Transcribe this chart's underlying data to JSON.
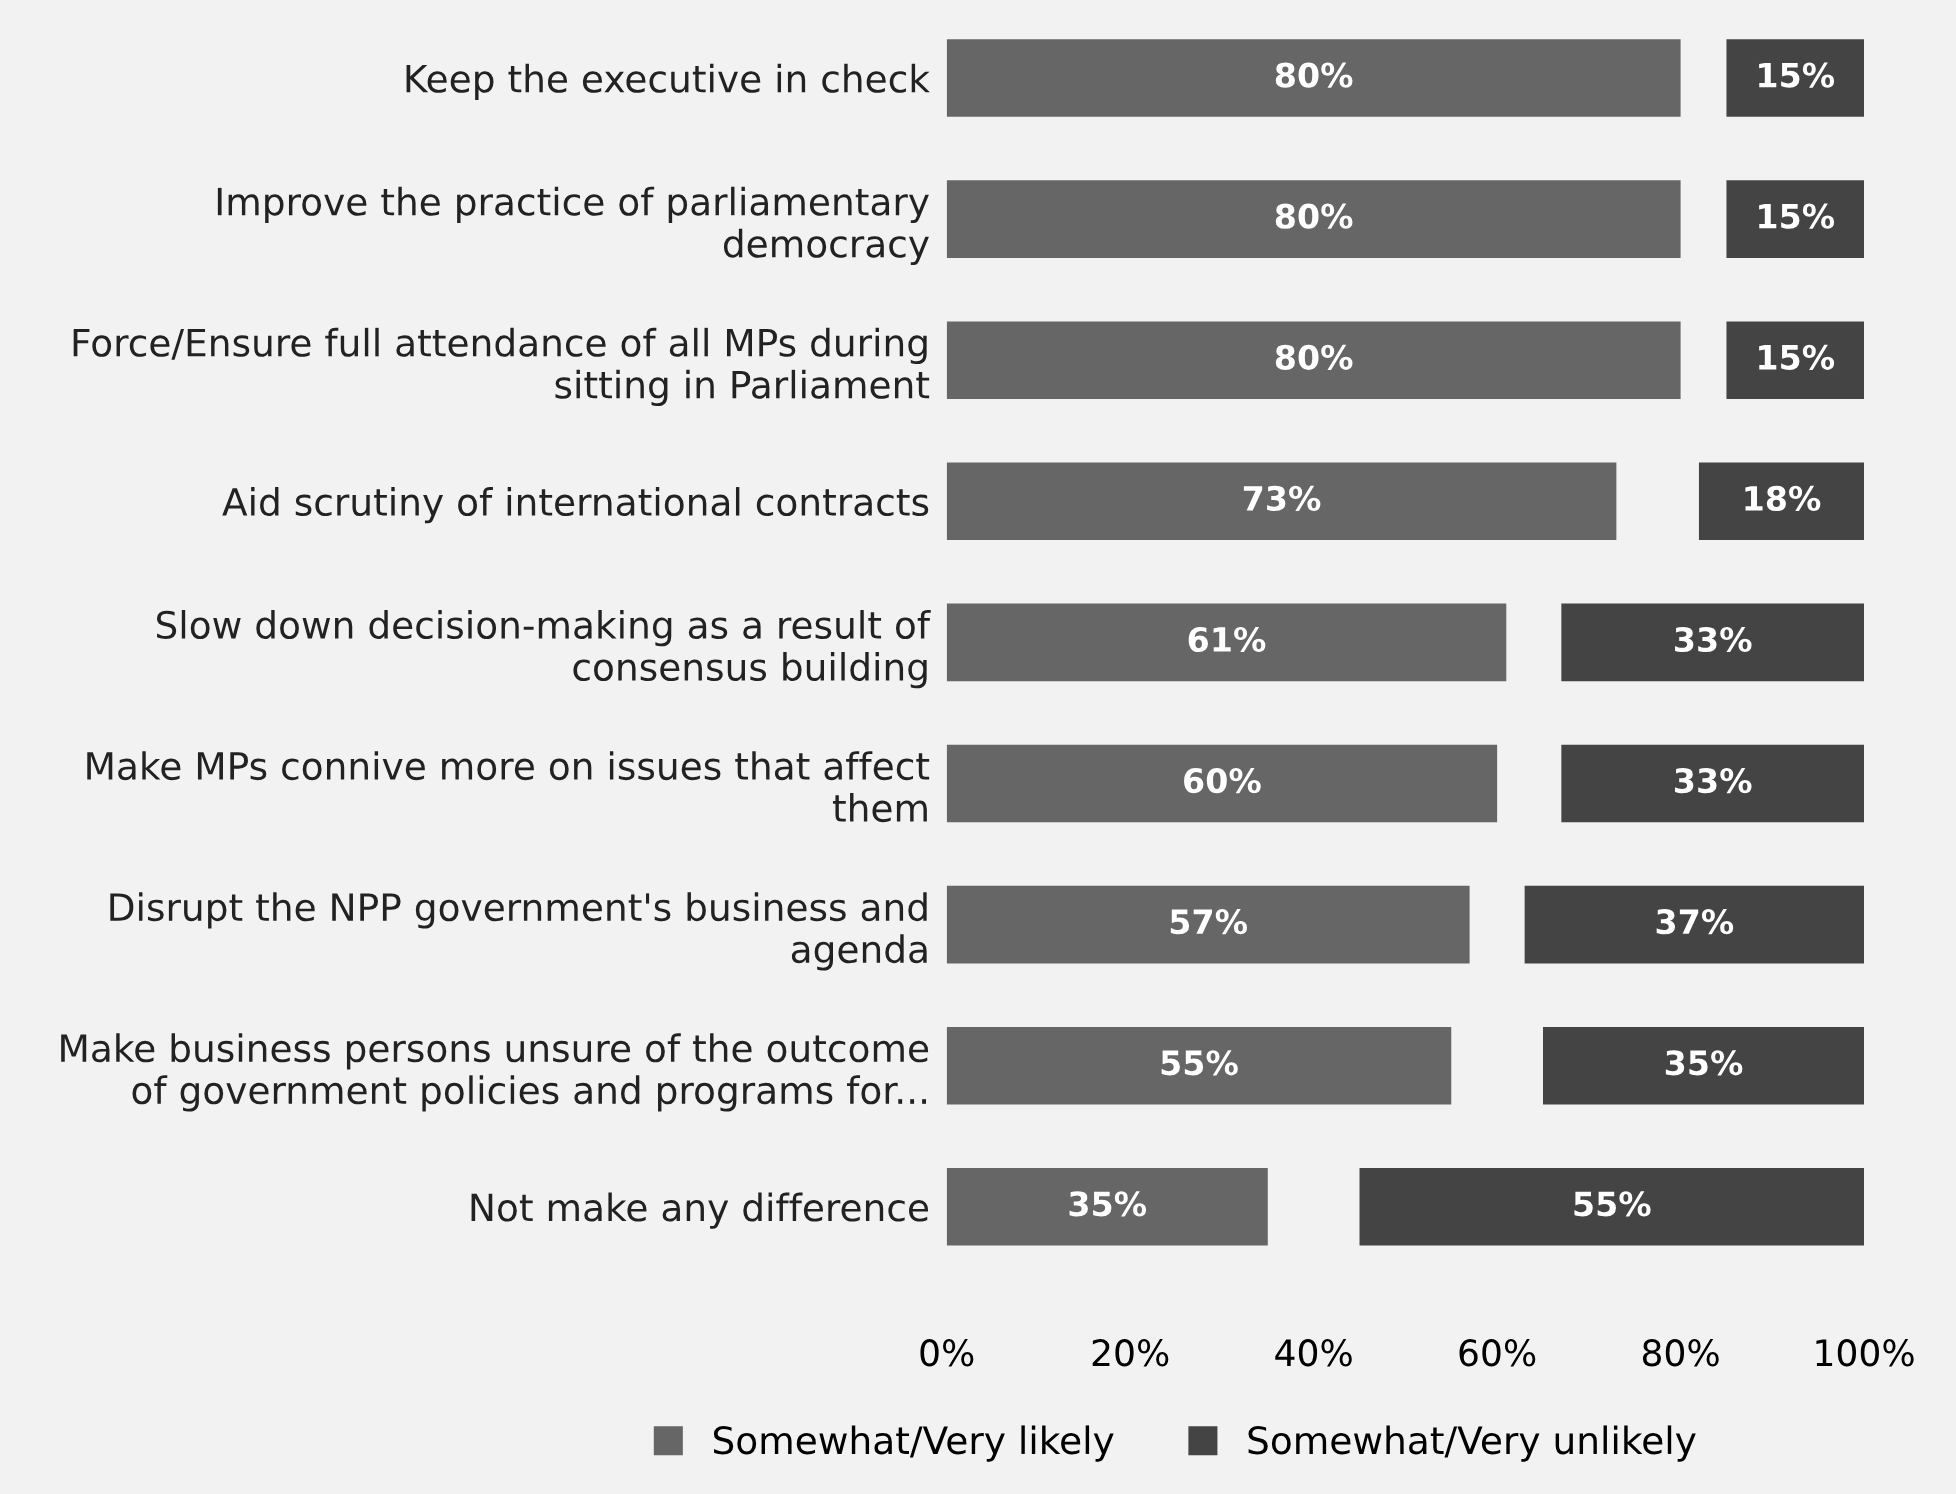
{
  "chart_data": {
    "type": "bar",
    "orientation": "horizontal",
    "categories": [
      "Keep the executive in check",
      "Improve the practice of parliamentary\ndemocracy",
      "Force/Ensure full attendance of all MPs during\nsitting in Parliament",
      "Aid scrutiny of international contracts",
      "Slow down decision-making as a result of\nconsensus building",
      "Make MPs connive more on issues that affect\nthem",
      "Disrupt the NPP government's business and\nagenda",
      "Make business persons unsure of the outcome\nof government policies and programs for...",
      "Not make any difference"
    ],
    "series": [
      {
        "name": "Somewhat/Very likely",
        "color": "#666666",
        "values": [
          80,
          80,
          80,
          73,
          61,
          60,
          57,
          55,
          35
        ],
        "base": [
          0,
          0,
          0,
          0,
          0,
          0,
          0,
          0,
          0
        ]
      },
      {
        "name": "Somewhat/Very unlikely",
        "color": "#444444",
        "values": [
          15,
          15,
          15,
          18,
          33,
          33,
          37,
          35,
          55
        ],
        "base": [
          85,
          85,
          85,
          82,
          67,
          67,
          63,
          65,
          45
        ]
      }
    ],
    "value_labels": [
      [
        "80%",
        "80%",
        "80%",
        "73%",
        "61%",
        "60%",
        "57%",
        "55%",
        "35%"
      ],
      [
        "15%",
        "15%",
        "15%",
        "18%",
        "33%",
        "33%",
        "37%",
        "35%",
        "55%"
      ]
    ],
    "xlim": [
      0,
      100
    ],
    "xticks": [
      {
        "value": 0,
        "label": "0%"
      },
      {
        "value": 20,
        "label": "20%"
      },
      {
        "value": 40,
        "label": "40%"
      },
      {
        "value": 60,
        "label": "60%"
      },
      {
        "value": 80,
        "label": "80%"
      },
      {
        "value": 100,
        "label": "100%"
      }
    ],
    "grid": false,
    "legend": "bottom"
  }
}
